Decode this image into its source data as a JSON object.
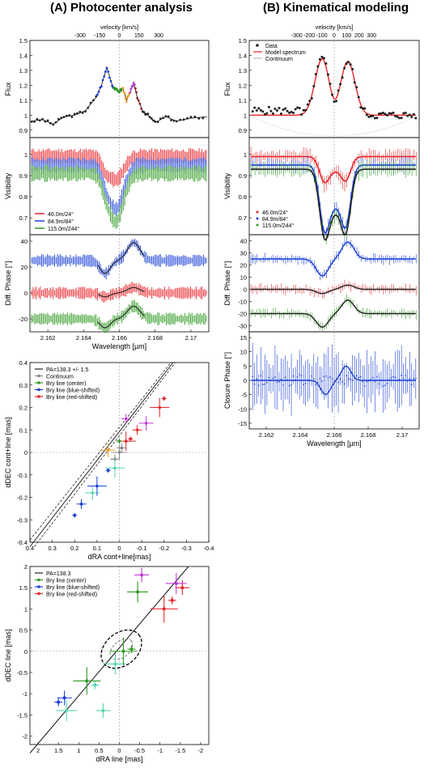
{
  "left_title": "(A) Photocenter analysis",
  "right_title": "(B) Kinematical modeling",
  "colors": {
    "red": "#e8232a",
    "blue": "#1a3fd6",
    "green": "#2f9a22",
    "black": "#222222",
    "orange": "#f0a020",
    "purple": "#c03ad8",
    "teal": "#56d6b0",
    "grey": "#888888"
  },
  "chart_data": [
    {
      "id": "A-flux",
      "type": "line",
      "ylabel": "Flux",
      "toplabel": "velocity [km/s]",
      "top_ticks": [
        "-300",
        "-150",
        "0",
        "150",
        "300"
      ],
      "yticks": [
        "0.9",
        "1",
        "1.1",
        "1.2",
        "1.3",
        "1.4",
        "1.5"
      ],
      "ylim": [
        0.85,
        1.5
      ],
      "xlim": [
        2.161,
        2.171
      ],
      "x": [
        2.1611,
        2.1617,
        2.1623,
        2.1629,
        2.1635,
        2.1641,
        2.1647,
        2.165,
        2.1653,
        2.1656,
        2.1658,
        2.166,
        2.1662,
        2.1664,
        2.1666,
        2.1668,
        2.167,
        2.1673,
        2.1676,
        2.168,
        2.1686,
        2.1692,
        2.17,
        2.1709
      ],
      "y": [
        0.96,
        0.97,
        0.94,
        0.99,
        1.0,
        1.03,
        1.12,
        1.2,
        1.32,
        1.2,
        1.17,
        1.16,
        1.18,
        1.1,
        1.15,
        1.22,
        1.12,
        1.03,
        1.0,
        0.95,
        0.99,
        0.96,
        0.98,
        0.99
      ]
    },
    {
      "id": "A-vis",
      "type": "line",
      "ylabel": "Visibility",
      "yticks": [
        "0.7",
        "0.8",
        "0.9",
        "1"
      ],
      "ylim": [
        0.62,
        1.08
      ],
      "xlim": [
        2.161,
        2.171
      ],
      "legend": [
        "46.0m/24°",
        "84.9m/84°",
        "115.0m/244°"
      ],
      "series": [
        {
          "name": "46.0m/24°",
          "base": 0.99,
          "dip": 0.11
        },
        {
          "name": "84.9m/84°",
          "base": 0.95,
          "dip": 0.21
        },
        {
          "name": "115.0m/244°",
          "base": 0.91,
          "dip": 0.23
        }
      ]
    },
    {
      "id": "A-phase",
      "type": "line",
      "ylabel": "Diff. Phase [°]",
      "xlabel": "Wavelength [µm]",
      "yticks": [
        "-20",
        "0",
        "20",
        "40"
      ],
      "ylim": [
        -30,
        45
      ],
      "xlim": [
        2.161,
        2.171
      ],
      "xticks": [
        "2.162",
        "2.164",
        "2.166",
        "2.168",
        "2.17"
      ],
      "series": [
        {
          "name": "blue",
          "offset": 25
        },
        {
          "name": "red",
          "offset": 0
        },
        {
          "name": "green",
          "offset": -20
        }
      ]
    },
    {
      "id": "A-photo",
      "type": "scatter",
      "xlabel": "dRA cont+line[mas]",
      "ylabel": "dDEC cont+line [mas]",
      "xlim": [
        0.4,
        -0.4
      ],
      "ylim": [
        -0.4,
        0.4
      ],
      "xticks": [
        "0.4",
        "0.3",
        "0.2",
        "0.1",
        "0",
        "-0.1",
        "-0.2",
        "-0.3",
        "-0.4"
      ],
      "yticks": [
        "-0.4",
        "-0.3",
        "-0.2",
        "-0.1",
        "0",
        "0.1",
        "0.2",
        "0.3",
        "0.4"
      ],
      "legend": [
        "PA=138.3 +/- 1.5",
        "Continuum",
        "Brγ line (center)",
        "Brγ line (blue-shifted)",
        "Brγ line (red-shifted)"
      ],
      "points": [
        [
          0.2,
          -0.28
        ],
        [
          0.17,
          -0.23
        ],
        [
          0.12,
          -0.18
        ],
        [
          0.1,
          -0.15
        ],
        [
          0.05,
          -0.08
        ],
        [
          0.02,
          -0.03
        ],
        [
          0.0,
          0.0
        ],
        [
          -0.03,
          0.05
        ],
        [
          -0.05,
          0.06
        ],
        [
          -0.08,
          0.1
        ],
        [
          -0.12,
          0.13
        ],
        [
          -0.18,
          0.2
        ],
        [
          -0.2,
          0.24
        ],
        [
          -0.03,
          0.15
        ],
        [
          0.05,
          0.01
        ],
        [
          0.02,
          -0.07
        ],
        [
          0.0,
          0.05
        ],
        [
          -0.01,
          0.02
        ]
      ]
    },
    {
      "id": "A-line",
      "type": "scatter",
      "xlabel": "dRA line [mas]",
      "ylabel": "dDEC line [mas]",
      "xlim": [
        2.2,
        -2.2
      ],
      "ylim": [
        -2.2,
        2.0
      ],
      "xticks": [
        "2",
        "1.5",
        "1",
        "0.5",
        "0",
        "-0.5",
        "-1",
        "-1.5",
        "-2"
      ],
      "yticks": [
        "-2",
        "-1.5",
        "-1",
        "-0.5",
        "0",
        "0.5",
        "1",
        "1.5",
        "2"
      ],
      "legend": [
        "PA=138.3",
        "Brγ line (center)",
        "Brγ line (blue-shifted)",
        "Brγ line (red-shifted)"
      ],
      "points": [
        [
          1.5,
          -1.2
        ],
        [
          1.35,
          -1.1
        ],
        [
          1.3,
          -1.4
        ],
        [
          0.8,
          -0.7
        ],
        [
          0.6,
          -0.8
        ],
        [
          0.4,
          -1.4
        ],
        [
          0.1,
          -0.3
        ],
        [
          -0.1,
          0.0
        ],
        [
          -0.3,
          0.05
        ],
        [
          -0.55,
          1.8
        ],
        [
          -0.45,
          1.4
        ],
        [
          -1.1,
          1.0
        ],
        [
          -1.3,
          1.2
        ],
        [
          -1.55,
          1.5
        ],
        [
          -1.4,
          1.6
        ]
      ]
    },
    {
      "id": "B-flux",
      "type": "line",
      "ylabel": "Flux",
      "toplabel": "velocity [km/s]",
      "top_ticks": [
        "-300",
        "-200",
        "-100",
        "0",
        "100",
        "200",
        "300"
      ],
      "yticks": [
        "0.9",
        "1",
        "1.1",
        "1.2",
        "1.3",
        "1.4",
        "1.5"
      ],
      "ylim": [
        0.85,
        1.5
      ],
      "xlim": [
        2.161,
        2.171
      ],
      "legend": [
        "Data",
        "Model spectrum",
        "Continuum"
      ],
      "x": [
        2.1611,
        2.162,
        2.163,
        2.164,
        2.1647,
        2.1652,
        2.1656,
        2.166,
        2.1664,
        2.1668,
        2.1672,
        2.1676,
        2.1682,
        2.169,
        2.17,
        2.1709
      ],
      "y": [
        1.0,
        1.0,
        1.04,
        1.1,
        1.2,
        1.38,
        1.3,
        1.15,
        1.22,
        1.35,
        1.15,
        1.03,
        1.0,
        1.0,
        1.02,
        1.03
      ]
    },
    {
      "id": "B-vis",
      "type": "line",
      "ylabel": "Visibility",
      "yticks": [
        "0.7",
        "0.8",
        "0.9",
        "1"
      ],
      "ylim": [
        0.62,
        1.08
      ],
      "xlim": [
        2.161,
        2.171
      ],
      "legend": [
        "46.0m/24°",
        "84.9m/84°",
        "115.0m/244°"
      ]
    },
    {
      "id": "B-phase",
      "type": "line",
      "ylabel": "Diff. Phase [°]",
      "yticks": [
        "-30",
        "-20",
        "-10",
        "0",
        "10",
        "20",
        "30",
        "40"
      ],
      "ylim": [
        -35,
        45
      ],
      "xlim": [
        2.161,
        2.171
      ]
    },
    {
      "id": "B-cp",
      "type": "line",
      "ylabel": "Closure Phase [°]",
      "xlabel": "Wavelength [µm]",
      "yticks": [
        "-15",
        "-10",
        "-5",
        "0",
        "5",
        "10",
        "15"
      ],
      "ylim": [
        -17,
        17
      ],
      "xlim": [
        2.161,
        2.171
      ],
      "xticks": [
        "2.162",
        "2.164",
        "2.166",
        "2.168",
        "2.17"
      ]
    }
  ]
}
